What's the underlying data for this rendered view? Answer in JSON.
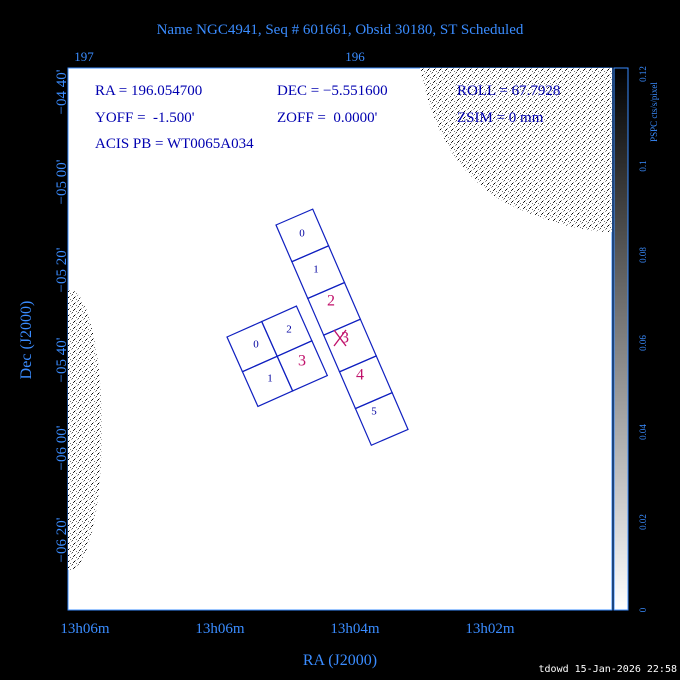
{
  "header": {
    "title": "Name NGC4941, Seq # 601661, Obsid 30180, ST Scheduled"
  },
  "top_axis": {
    "ticks": [
      "197",
      "196"
    ]
  },
  "left_axis": {
    "label": "Dec (J2000)",
    "ticks": [
      "−04 40'",
      "−05 00'",
      "−05 20'",
      "−05 40'",
      "−06 00'",
      "−06 20'"
    ]
  },
  "bottom_axis": {
    "label": "RA (J2000)",
    "ticks": [
      "13h06m",
      "13h06m",
      "13h04m",
      "13h02m"
    ]
  },
  "colorbar": {
    "label": "PSPC cts/s/pixel",
    "ticks": [
      "0",
      "0.02",
      "0.04",
      "0.06",
      "0.08",
      "0.1",
      "0.12"
    ]
  },
  "info": {
    "ra": "RA = 196.054700",
    "dec": "DEC = −5.551600",
    "roll": "ROLL = 67.7928",
    "yoff": "YOFF =  -1.500'",
    "zoff": "ZOFF =  0.0000'",
    "zsim": "ZSIM = 0 mm",
    "acis": "ACIS PB = WT0065A034"
  },
  "acis_s": {
    "chips": [
      "0",
      "1",
      "2",
      "3",
      "4",
      "5"
    ]
  },
  "acis_i": {
    "chips": [
      "0",
      "1",
      "2",
      "3"
    ]
  },
  "footer": {
    "text": "tdowd 15-Jan-2026 22:58"
  }
}
